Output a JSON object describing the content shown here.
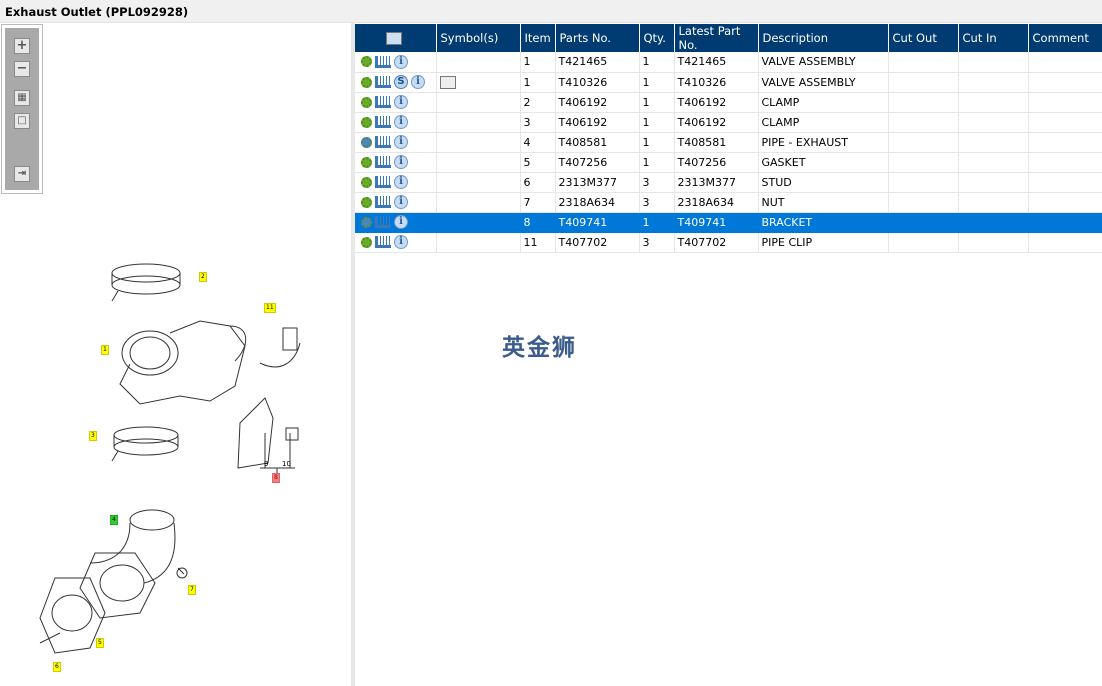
{
  "window": {
    "title": "Exhaust Outlet (PPL092928)"
  },
  "toolbar": {
    "zoom_in": "+",
    "zoom_out": "−",
    "fit": "▦",
    "actual": "□",
    "export": "⇥"
  },
  "grid": {
    "columns": [
      "",
      "Symbol(s)",
      "Item",
      "Parts No.",
      "Qty.",
      "Latest Part No.",
      "Description",
      "Cut Out",
      "Cut In",
      "Comment"
    ],
    "rows": [
      {
        "icons": [
          "gear",
          "cart",
          "info"
        ],
        "symbol": "",
        "item": "1",
        "part": "T421465",
        "qty": "1",
        "latest": "T421465",
        "desc": "VALVE ASSEMBLY",
        "cut_out": "",
        "cut_in": "",
        "comment": ""
      },
      {
        "icons": [
          "gear",
          "cart",
          "s",
          "info"
        ],
        "symbol": "book",
        "item": "1",
        "part": "T410326",
        "qty": "1",
        "latest": "T410326",
        "desc": "VALVE ASSEMBLY",
        "cut_out": "",
        "cut_in": "",
        "comment": ""
      },
      {
        "icons": [
          "gear",
          "cart",
          "info"
        ],
        "symbol": "",
        "item": "2",
        "part": "T406192",
        "qty": "1",
        "latest": "T406192",
        "desc": "CLAMP",
        "cut_out": "",
        "cut_in": "",
        "comment": ""
      },
      {
        "icons": [
          "gear",
          "cart",
          "info"
        ],
        "symbol": "",
        "item": "3",
        "part": "T406192",
        "qty": "1",
        "latest": "T406192",
        "desc": "CLAMP",
        "cut_out": "",
        "cut_in": "",
        "comment": ""
      },
      {
        "icons": [
          "gears",
          "cart",
          "info"
        ],
        "symbol": "",
        "item": "4",
        "part": "T408581",
        "qty": "1",
        "latest": "T408581",
        "desc": "PIPE - EXHAUST",
        "cut_out": "",
        "cut_in": "",
        "comment": ""
      },
      {
        "icons": [
          "gear",
          "cart",
          "info"
        ],
        "symbol": "",
        "item": "5",
        "part": "T407256",
        "qty": "1",
        "latest": "T407256",
        "desc": "GASKET",
        "cut_out": "",
        "cut_in": "",
        "comment": ""
      },
      {
        "icons": [
          "gear",
          "cart",
          "info"
        ],
        "symbol": "",
        "item": "6",
        "part": "2313M377",
        "qty": "3",
        "latest": "2313M377",
        "desc": "STUD",
        "cut_out": "",
        "cut_in": "",
        "comment": ""
      },
      {
        "icons": [
          "gear",
          "cart",
          "info"
        ],
        "symbol": "",
        "item": "7",
        "part": "2318A634",
        "qty": "3",
        "latest": "2318A634",
        "desc": "NUT",
        "cut_out": "",
        "cut_in": "",
        "comment": ""
      },
      {
        "icons": [
          "kit",
          "cart",
          "info"
        ],
        "symbol": "",
        "item": "8",
        "part": "T409741",
        "qty": "1",
        "latest": "T409741",
        "desc": "BRACKET",
        "cut_out": "",
        "cut_in": "",
        "comment": "",
        "selected": true
      },
      {
        "icons": [
          "gear",
          "cart",
          "info"
        ],
        "symbol": "",
        "item": "11",
        "part": "T407702",
        "qty": "3",
        "latest": "T407702",
        "desc": "PIPE CLIP",
        "cut_out": "",
        "cut_in": "",
        "comment": ""
      }
    ]
  },
  "watermark": "英金狮",
  "callouts": [
    "2",
    "11",
    "1",
    "3",
    "9",
    "10",
    "8",
    "4",
    "7",
    "5",
    "6"
  ],
  "colors": {
    "header": "#003b71",
    "selected": "#0078d7",
    "callout": "#ffff00"
  }
}
